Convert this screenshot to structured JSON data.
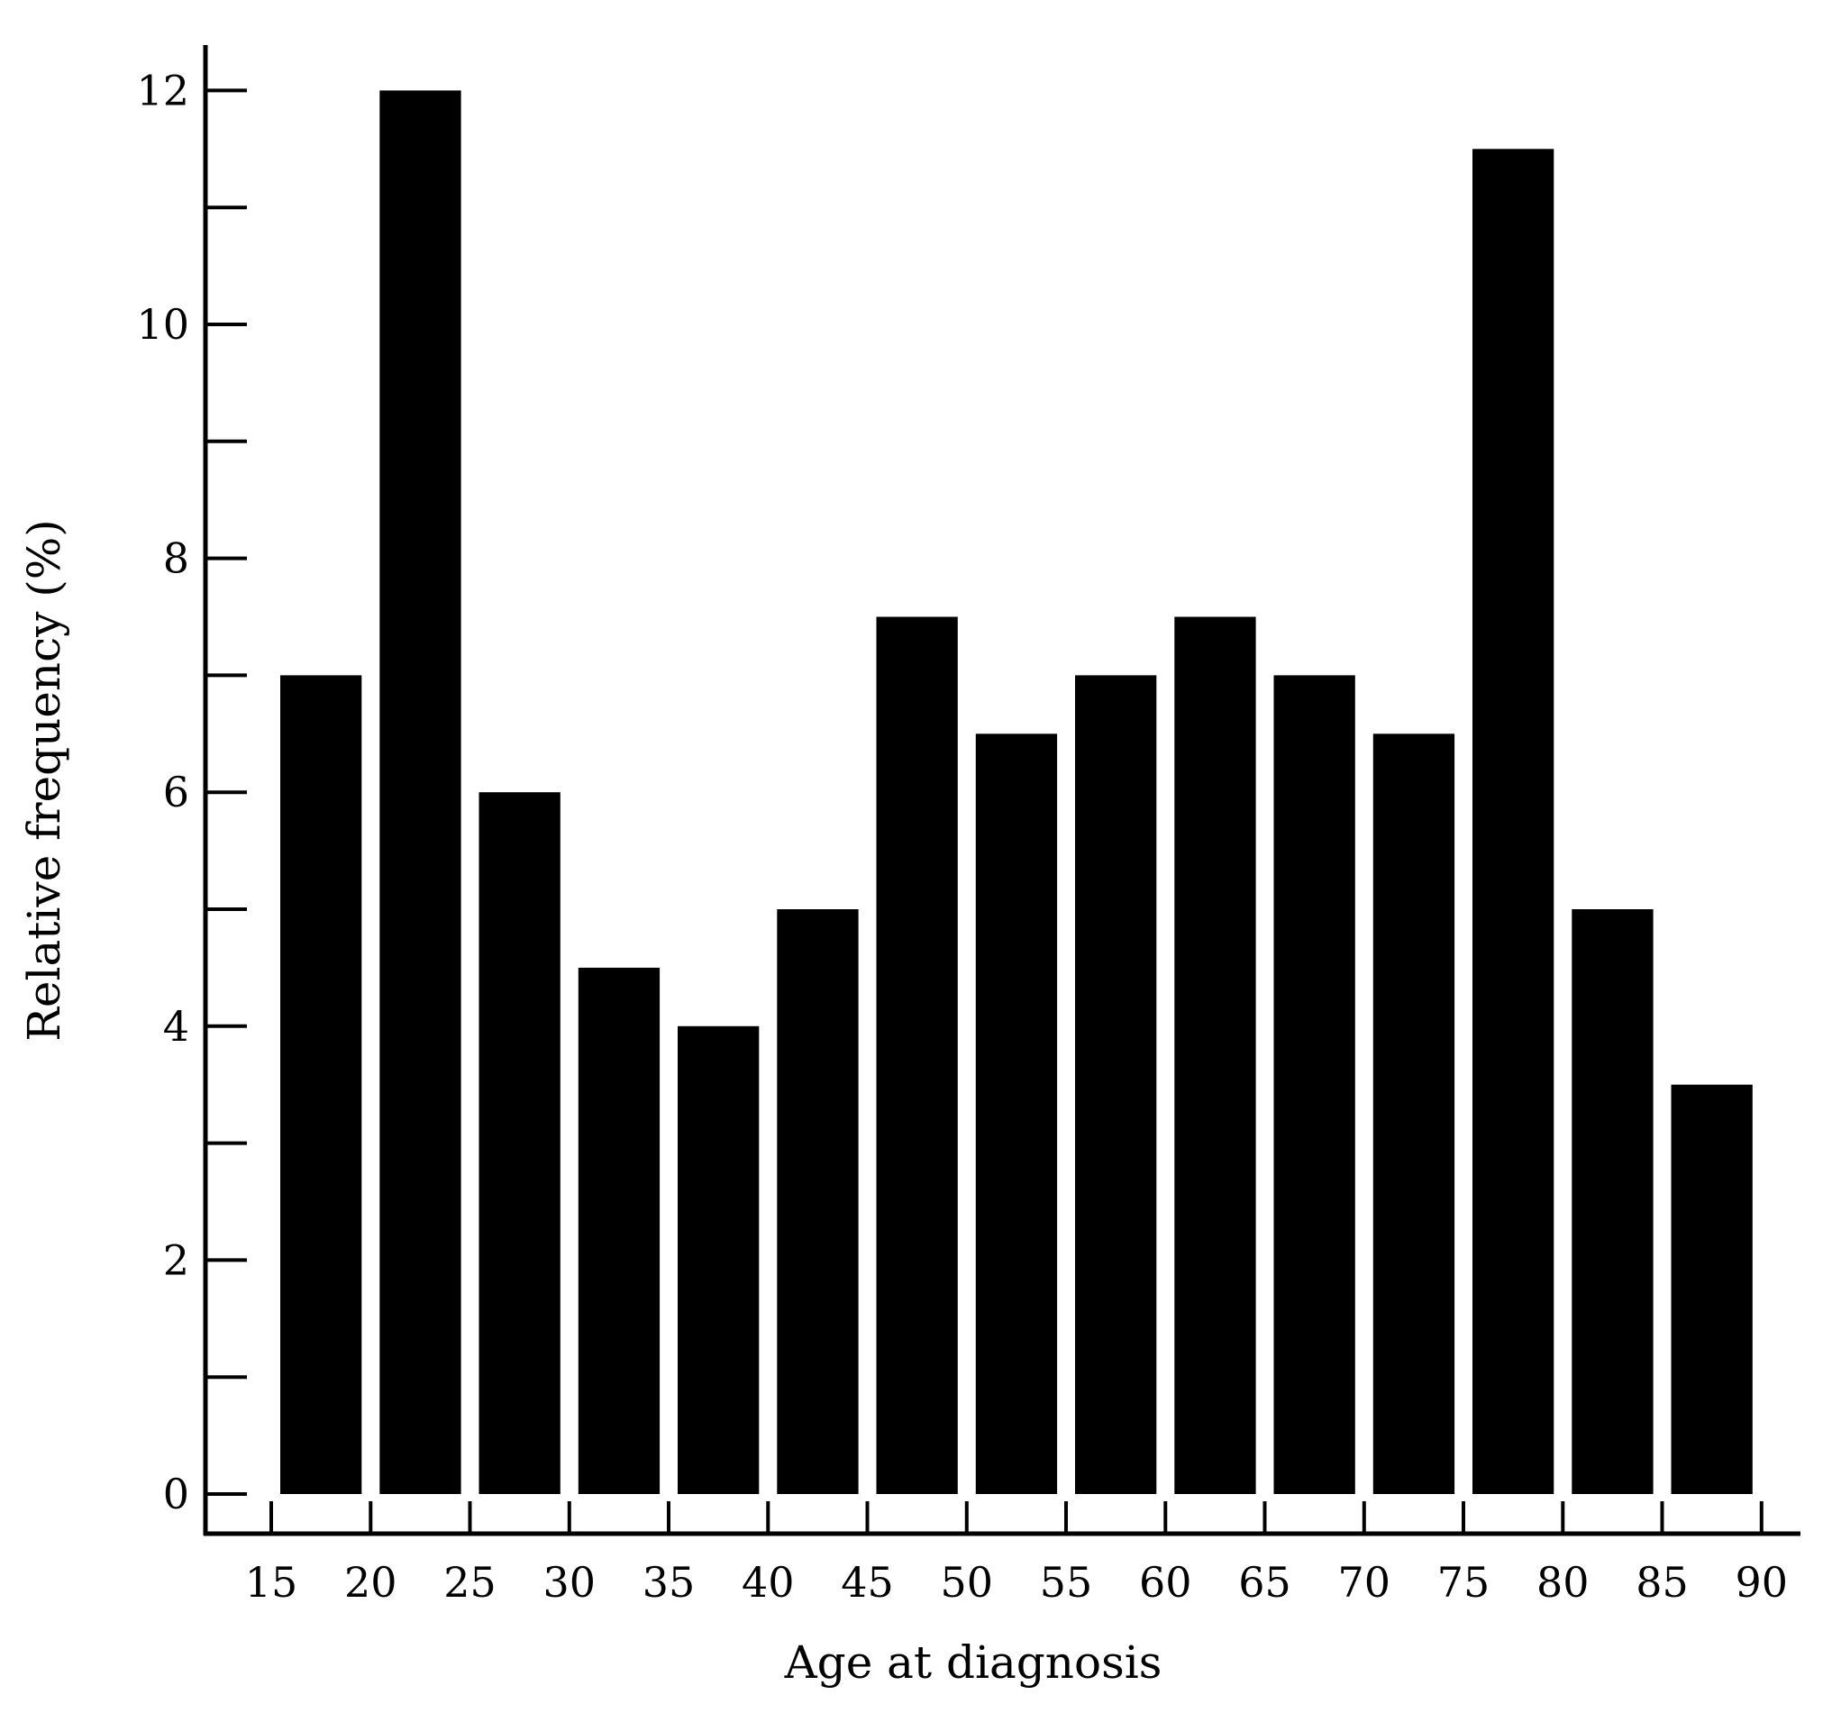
{
  "chart_data": {
    "type": "bar",
    "title": "",
    "xlabel": "Age at diagnosis",
    "ylabel": "Relative frequency (%)",
    "x_ticks": [
      "15",
      "20",
      "25",
      "30",
      "35",
      "40",
      "45",
      "50",
      "55",
      "60",
      "65",
      "70",
      "75",
      "80",
      "85",
      "90"
    ],
    "y_ticks": [
      "0",
      "2",
      "4",
      "6",
      "8",
      "10",
      "12"
    ],
    "bins": [
      {
        "from": 15,
        "to": 20,
        "value": 7.0
      },
      {
        "from": 20,
        "to": 25,
        "value": 12.0
      },
      {
        "from": 25,
        "to": 30,
        "value": 6.0
      },
      {
        "from": 30,
        "to": 35,
        "value": 4.5
      },
      {
        "from": 35,
        "to": 40,
        "value": 4.0
      },
      {
        "from": 40,
        "to": 45,
        "value": 5.0
      },
      {
        "from": 45,
        "to": 50,
        "value": 7.5
      },
      {
        "from": 50,
        "to": 55,
        "value": 6.5
      },
      {
        "from": 55,
        "to": 60,
        "value": 7.0
      },
      {
        "from": 60,
        "to": 65,
        "value": 7.5
      },
      {
        "from": 65,
        "to": 70,
        "value": 7.0
      },
      {
        "from": 70,
        "to": 75,
        "value": 6.5
      },
      {
        "from": 75,
        "to": 80,
        "value": 11.5
      },
      {
        "from": 80,
        "to": 85,
        "value": 5.0
      },
      {
        "from": 85,
        "to": 90,
        "value": 3.5
      }
    ],
    "xlim": [
      15,
      90
    ],
    "ylim": [
      0,
      12
    ],
    "y_minor_step": 1,
    "grid": false,
    "legend": "none",
    "colors": {
      "bar": "#000000",
      "axis": "#000000",
      "background": "#ffffff"
    }
  }
}
